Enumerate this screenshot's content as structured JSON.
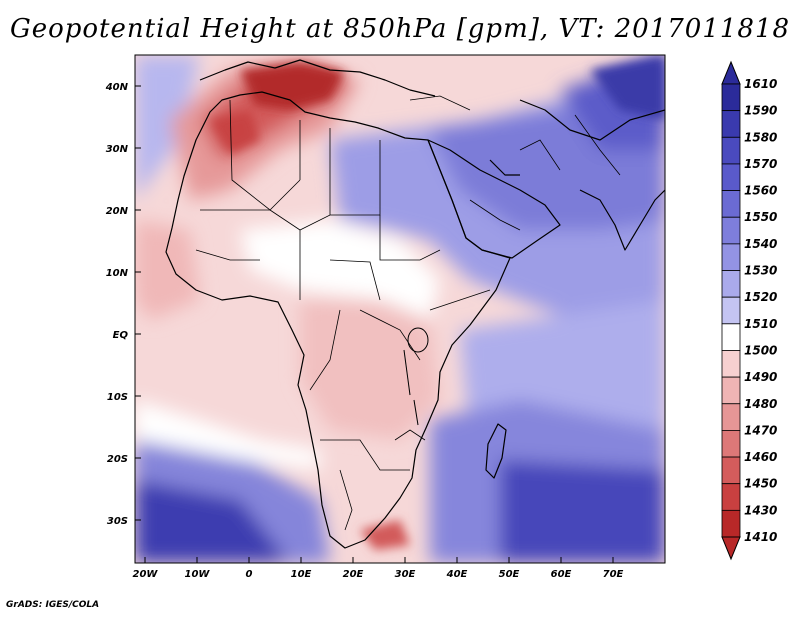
{
  "title": "Geopotential Height at 850hPa [gpm], VT: 2017011818",
  "credit": "GrADS: IGES/COLA",
  "axes": {
    "lat_ticks": [
      "40N",
      "30N",
      "20N",
      "10N",
      "EQ",
      "10S",
      "20S",
      "30S"
    ],
    "lon_ticks": [
      "20W",
      "10W",
      "0",
      "10E",
      "20E",
      "30E",
      "40E",
      "50E",
      "60E",
      "70E"
    ]
  },
  "colorbar": {
    "levels": [
      "1610",
      "1590",
      "1580",
      "1570",
      "1560",
      "1550",
      "1540",
      "1530",
      "1520",
      "1510",
      "1500",
      "1490",
      "1480",
      "1470",
      "1460",
      "1450",
      "1430",
      "1410"
    ],
    "colors": [
      "#2b2b9a",
      "#3a3aae",
      "#4a4abe",
      "#5a5acb",
      "#6b6bd3",
      "#7e7edc",
      "#9393e4",
      "#aaaaeb",
      "#c4c4f2",
      "#ffffff",
      "#f7d0d0",
      "#efb4b4",
      "#e69696",
      "#dd7878",
      "#d45c5c",
      "#c94040",
      "#b82828"
    ]
  },
  "colors": {
    "land_border": "#000000",
    "strong_high": "#2f2fa8",
    "high": "#7b7bd8",
    "mild_high": "#b5b5ee",
    "neutral": "#ffffff",
    "mild_low": "#f4c6c6",
    "low": "#e38a8a",
    "strong_low": "#b22222"
  }
}
